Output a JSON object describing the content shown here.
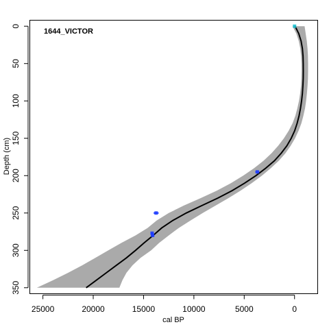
{
  "chart_data": {
    "type": "line",
    "title": "1644_VICTOR",
    "xlabel": "cal BP",
    "ylabel": "Depth (cm)",
    "xlim": [
      26300,
      -2300
    ],
    "ylim": [
      -8,
      358
    ],
    "x_axis_reversed": true,
    "y_axis_reversed": true,
    "x_ticks": [
      25000,
      20000,
      15000,
      10000,
      5000,
      0
    ],
    "y_ticks": [
      0,
      50,
      100,
      150,
      200,
      250,
      300,
      350
    ],
    "grid": false,
    "legend": "none",
    "colors": {
      "envelope": "#aaaaaa",
      "median": "#000000",
      "dates": "#1e3cff",
      "surface": "#17becf"
    },
    "envelope": {
      "depth": [
        0,
        10,
        20,
        30,
        40,
        50,
        60,
        70,
        80,
        90,
        100,
        110,
        120,
        130,
        140,
        150,
        160,
        170,
        180,
        190,
        200,
        210,
        220,
        230,
        240,
        250,
        260,
        270,
        280,
        290,
        300,
        310,
        320,
        330,
        340,
        350
      ],
      "young_age": [
        -1000,
        -1110,
        -1220,
        -1290,
        -1330,
        -1350,
        -1350,
        -1330,
        -1290,
        -1230,
        -1150,
        -1040,
        -880,
        -680,
        -400,
        -50,
        380,
        900,
        1560,
        2360,
        3240,
        4260,
        5360,
        6560,
        7840,
        9120,
        10340,
        11500,
        12500,
        13450,
        14250,
        15300,
        16100,
        16700,
        17100,
        17400
      ],
      "old_age": [
        200,
        -180,
        -420,
        -570,
        -650,
        -690,
        -700,
        -680,
        -640,
        -560,
        -440,
        -280,
        -80,
        200,
        580,
        1060,
        1620,
        2280,
        3080,
        4020,
        5100,
        6320,
        7720,
        9320,
        11000,
        12500,
        13700,
        14600,
        15800,
        17200,
        18500,
        19800,
        21100,
        22500,
        24000,
        25600
      ]
    },
    "median": {
      "depth": [
        0,
        10,
        20,
        30,
        40,
        50,
        60,
        70,
        80,
        90,
        100,
        110,
        120,
        130,
        140,
        150,
        160,
        170,
        180,
        190,
        200,
        210,
        220,
        230,
        240,
        250,
        260,
        270,
        280,
        290,
        300,
        310,
        320,
        330,
        340,
        350
      ],
      "age": [
        -50,
        -420,
        -650,
        -780,
        -840,
        -860,
        -870,
        -860,
        -830,
        -780,
        -700,
        -590,
        -450,
        -260,
        -10,
        330,
        760,
        1320,
        2000,
        2860,
        3840,
        4960,
        6200,
        7620,
        9200,
        10760,
        12100,
        13200,
        14050,
        14950,
        15800,
        16700,
        17700,
        18700,
        19700,
        20700
      ]
    },
    "dates": [
      {
        "depth": 0,
        "age_min": -50,
        "age_max": 50,
        "kind": "surface"
      },
      {
        "depth": 195,
        "age_min": 3500,
        "age_max": 3900,
        "kind": "radiocarbon"
      },
      {
        "depth": 250,
        "age_min": 13500,
        "age_max": 14000,
        "kind": "radiocarbon"
      },
      {
        "depth": 277,
        "age_min": 14000,
        "age_max": 14300,
        "kind": "radiocarbon"
      },
      {
        "depth": 280,
        "age_min": 13950,
        "age_max": 14250,
        "kind": "radiocarbon"
      }
    ]
  }
}
